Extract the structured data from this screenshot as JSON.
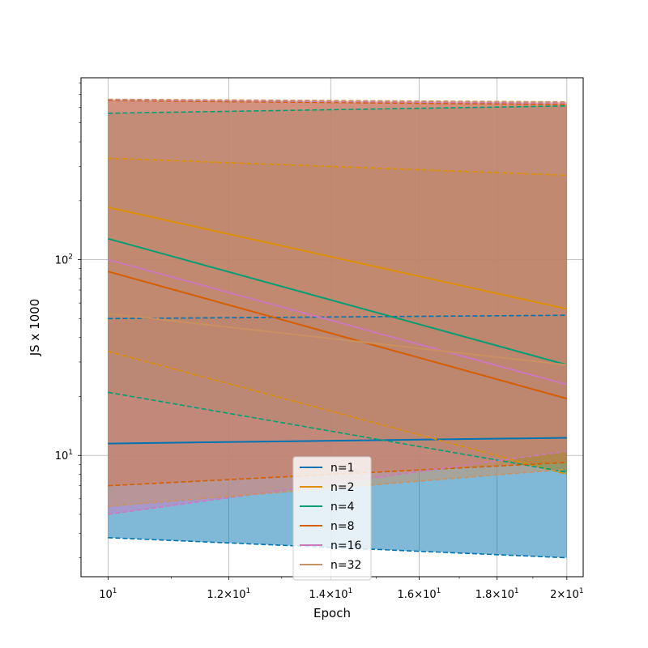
{
  "chart_data": {
    "type": "line",
    "title": "",
    "xlabel": "Epoch",
    "ylabel": "JS x 1000",
    "xscale": "log",
    "yscale": "log",
    "xlim": [
      9.6,
      20.5
    ],
    "ylim": [
      2.4,
      850
    ],
    "x": [
      10,
      20
    ],
    "grid": true,
    "legend_position": "lower-center",
    "xticks": [
      {
        "value": 10,
        "base": "10",
        "exp": "1",
        "coef": ""
      },
      {
        "value": 12,
        "base": "10",
        "exp": "1",
        "coef": "1.2×"
      },
      {
        "value": 14,
        "base": "10",
        "exp": "1",
        "coef": "1.4×"
      },
      {
        "value": 16,
        "base": "10",
        "exp": "1",
        "coef": "1.6×"
      },
      {
        "value": 18,
        "base": "10",
        "exp": "1",
        "coef": "1.8×"
      },
      {
        "value": 20,
        "base": "10",
        "exp": "1",
        "coef": "2×"
      }
    ],
    "yticks": [
      {
        "value": 10,
        "base": "10",
        "exp": "1"
      },
      {
        "value": 100,
        "base": "10",
        "exp": "2"
      }
    ],
    "series": [
      {
        "name": "n=1",
        "color": "#0173b2",
        "mean": [
          11.5,
          12.3
        ],
        "lower": [
          3.8,
          3.0
        ],
        "upper": [
          50,
          52
        ]
      },
      {
        "name": "n=2",
        "color": "#de8f05",
        "mean": [
          185,
          56
        ],
        "lower": [
          34,
          8.0
        ],
        "upper": [
          330,
          270
        ]
      },
      {
        "name": "n=4",
        "color": "#029e73",
        "mean": [
          128,
          29
        ],
        "lower": [
          21,
          8.2
        ],
        "upper": [
          560,
          610
        ]
      },
      {
        "name": "n=8",
        "color": "#d55e00",
        "mean": [
          87,
          19.5
        ],
        "lower": [
          7.0,
          9.2
        ],
        "upper": [
          650,
          620
        ]
      },
      {
        "name": "n=16",
        "color": "#cc78bc",
        "mean": [
          100,
          23
        ],
        "lower": [
          5.0,
          10.5
        ],
        "upper": [
          655,
          630
        ]
      },
      {
        "name": "n=32",
        "color": "#ca9161",
        "mean": [
          53,
          29
        ],
        "lower": [
          5.5,
          8.5
        ],
        "upper": [
          660,
          640
        ]
      }
    ]
  }
}
